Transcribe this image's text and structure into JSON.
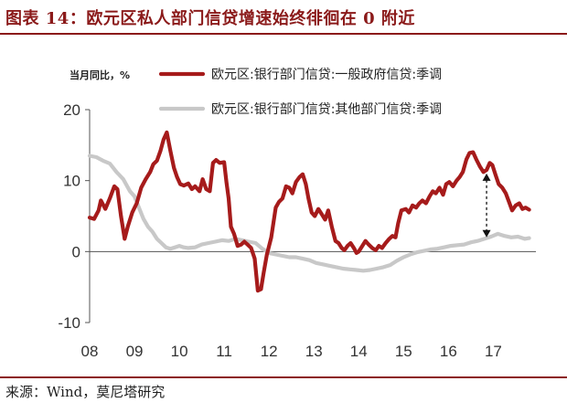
{
  "title": "图表 14：欧元区私人部门信贷增速始终徘徊在 0 附近",
  "source": "来源：Wind，莫尼塔研究",
  "chart_data": {
    "type": "line",
    "unit_label": "当月同比，%",
    "xlabel": "",
    "ylabel": "",
    "xlim": [
      2008,
      2017.95
    ],
    "ylim": [
      -10,
      20
    ],
    "yticks": [
      20,
      10,
      0,
      -10
    ],
    "xticks": [
      {
        "label": "08",
        "value": 2008
      },
      {
        "label": "09",
        "value": 2009
      },
      {
        "label": "10",
        "value": 2010
      },
      {
        "label": "11",
        "value": 2011
      },
      {
        "label": "12",
        "value": 2012
      },
      {
        "label": "13",
        "value": 2013
      },
      {
        "label": "14",
        "value": 2014
      },
      {
        "label": "15",
        "value": 2015
      },
      {
        "label": "16",
        "value": 2016
      },
      {
        "label": "17",
        "value": 2017
      }
    ],
    "legend_position": "top",
    "annotation": {
      "type": "double-arrow",
      "x": 2016.85,
      "y_from": 2,
      "y_to": 11
    },
    "series": [
      {
        "name": "欧元区:银行部门信贷:一般政府信贷:季调",
        "color": "#a61b1b",
        "points": [
          [
            2008.0,
            4.8
          ],
          [
            2008.1,
            4.6
          ],
          [
            2008.2,
            5.8
          ],
          [
            2008.25,
            7.2
          ],
          [
            2008.35,
            6.0
          ],
          [
            2008.45,
            7.5
          ],
          [
            2008.55,
            9.2
          ],
          [
            2008.62,
            8.8
          ],
          [
            2008.7,
            5.0
          ],
          [
            2008.78,
            1.8
          ],
          [
            2008.85,
            3.5
          ],
          [
            2008.95,
            5.5
          ],
          [
            2009.05,
            6.8
          ],
          [
            2009.15,
            9.0
          ],
          [
            2009.25,
            10.2
          ],
          [
            2009.35,
            11.2
          ],
          [
            2009.42,
            12.3
          ],
          [
            2009.5,
            12.8
          ],
          [
            2009.58,
            14.2
          ],
          [
            2009.65,
            15.8
          ],
          [
            2009.72,
            16.8
          ],
          [
            2009.8,
            14.2
          ],
          [
            2009.88,
            11.8
          ],
          [
            2009.95,
            10.5
          ],
          [
            2010.02,
            9.5
          ],
          [
            2010.1,
            9.3
          ],
          [
            2010.2,
            9.6
          ],
          [
            2010.28,
            8.8
          ],
          [
            2010.35,
            9.2
          ],
          [
            2010.45,
            8.5
          ],
          [
            2010.52,
            10.2
          ],
          [
            2010.6,
            8.8
          ],
          [
            2010.68,
            8.5
          ],
          [
            2010.75,
            12.5
          ],
          [
            2010.82,
            12.9
          ],
          [
            2010.9,
            12.5
          ],
          [
            2011.0,
            12.6
          ],
          [
            2011.05,
            9.8
          ],
          [
            2011.1,
            7.5
          ],
          [
            2011.15,
            3.5
          ],
          [
            2011.22,
            2.5
          ],
          [
            2011.3,
            0.8
          ],
          [
            2011.38,
            1.0
          ],
          [
            2011.45,
            1.4
          ],
          [
            2011.52,
            1.0
          ],
          [
            2011.6,
            0.5
          ],
          [
            2011.68,
            -1.0
          ],
          [
            2011.75,
            -5.5
          ],
          [
            2011.82,
            -5.3
          ],
          [
            2011.88,
            -3.0
          ],
          [
            2011.95,
            -0.5
          ],
          [
            2012.05,
            2.0
          ],
          [
            2012.15,
            6.2
          ],
          [
            2012.22,
            7.0
          ],
          [
            2012.3,
            7.5
          ],
          [
            2012.38,
            9.2
          ],
          [
            2012.45,
            9.0
          ],
          [
            2012.52,
            8.2
          ],
          [
            2012.6,
            9.8
          ],
          [
            2012.68,
            10.5
          ],
          [
            2012.75,
            10.9
          ],
          [
            2012.82,
            9.5
          ],
          [
            2012.88,
            7.5
          ],
          [
            2012.95,
            5.5
          ],
          [
            2013.02,
            5.0
          ],
          [
            2013.1,
            6.0
          ],
          [
            2013.18,
            5.2
          ],
          [
            2013.25,
            4.5
          ],
          [
            2013.32,
            5.8
          ],
          [
            2013.4,
            3.5
          ],
          [
            2013.48,
            1.5
          ],
          [
            2013.55,
            1.2
          ],
          [
            2013.62,
            0.5
          ],
          [
            2013.68,
            0.2
          ],
          [
            2013.75,
            0.8
          ],
          [
            2013.82,
            1.2
          ],
          [
            2013.9,
            0.4
          ],
          [
            2013.95,
            -0.2
          ],
          [
            2014.0,
            0.0
          ],
          [
            2014.08,
            0.8
          ],
          [
            2014.15,
            1.5
          ],
          [
            2014.22,
            1.0
          ],
          [
            2014.3,
            0.5
          ],
          [
            2014.38,
            0.2
          ],
          [
            2014.45,
            0.8
          ],
          [
            2014.52,
            0.5
          ],
          [
            2014.6,
            1.2
          ],
          [
            2014.68,
            1.8
          ],
          [
            2014.75,
            2.2
          ],
          [
            2014.82,
            2.0
          ],
          [
            2014.88,
            4.0
          ],
          [
            2014.95,
            5.8
          ],
          [
            2015.05,
            6.0
          ],
          [
            2015.12,
            5.5
          ],
          [
            2015.2,
            6.5
          ],
          [
            2015.28,
            6.2
          ],
          [
            2015.35,
            6.8
          ],
          [
            2015.42,
            7.2
          ],
          [
            2015.5,
            6.8
          ],
          [
            2015.58,
            7.8
          ],
          [
            2015.65,
            8.5
          ],
          [
            2015.72,
            8.2
          ],
          [
            2015.8,
            9.0
          ],
          [
            2015.88,
            8.0
          ],
          [
            2015.95,
            9.5
          ],
          [
            2016.02,
            9.8
          ],
          [
            2016.1,
            9.2
          ],
          [
            2016.18,
            10.0
          ],
          [
            2016.25,
            10.5
          ],
          [
            2016.32,
            11.2
          ],
          [
            2016.4,
            13.0
          ],
          [
            2016.47,
            13.9
          ],
          [
            2016.55,
            14.0
          ],
          [
            2016.62,
            13.0
          ],
          [
            2016.7,
            12.0
          ],
          [
            2016.78,
            11.2
          ],
          [
            2016.85,
            11.5
          ],
          [
            2016.92,
            12.5
          ],
          [
            2016.98,
            12.2
          ],
          [
            2017.05,
            10.8
          ],
          [
            2017.12,
            9.5
          ],
          [
            2017.2,
            9.0
          ],
          [
            2017.28,
            8.2
          ],
          [
            2017.35,
            7.0
          ],
          [
            2017.42,
            5.8
          ],
          [
            2017.5,
            6.5
          ],
          [
            2017.58,
            6.8
          ],
          [
            2017.65,
            6.0
          ],
          [
            2017.72,
            6.2
          ],
          [
            2017.8,
            5.9
          ]
        ]
      },
      {
        "name": "欧元区:银行部门信贷:其他部门信贷:季调",
        "color": "#c8c8c8",
        "points": [
          [
            2008.0,
            13.5
          ],
          [
            2008.15,
            13.3
          ],
          [
            2008.3,
            12.8
          ],
          [
            2008.45,
            12.4
          ],
          [
            2008.6,
            11.2
          ],
          [
            2008.75,
            10.2
          ],
          [
            2008.9,
            8.5
          ],
          [
            2009.0,
            7.8
          ],
          [
            2009.1,
            6.2
          ],
          [
            2009.2,
            4.6
          ],
          [
            2009.3,
            3.5
          ],
          [
            2009.4,
            2.8
          ],
          [
            2009.5,
            1.8
          ],
          [
            2009.6,
            1.2
          ],
          [
            2009.7,
            0.6
          ],
          [
            2009.8,
            0.4
          ],
          [
            2009.9,
            0.6
          ],
          [
            2010.0,
            0.8
          ],
          [
            2010.1,
            0.6
          ],
          [
            2010.2,
            0.5
          ],
          [
            2010.35,
            0.6
          ],
          [
            2010.5,
            1.0
          ],
          [
            2010.65,
            1.2
          ],
          [
            2010.8,
            1.4
          ],
          [
            2010.95,
            1.6
          ],
          [
            2011.1,
            1.5
          ],
          [
            2011.25,
            1.8
          ],
          [
            2011.4,
            1.6
          ],
          [
            2011.55,
            1.4
          ],
          [
            2011.7,
            1.2
          ],
          [
            2011.85,
            0.4
          ],
          [
            2012.0,
            -0.2
          ],
          [
            2012.15,
            -0.4
          ],
          [
            2012.3,
            -0.6
          ],
          [
            2012.45,
            -0.8
          ],
          [
            2012.6,
            -0.8
          ],
          [
            2012.75,
            -1.0
          ],
          [
            2012.9,
            -1.2
          ],
          [
            2013.05,
            -1.6
          ],
          [
            2013.2,
            -1.8
          ],
          [
            2013.35,
            -2.0
          ],
          [
            2013.5,
            -2.2
          ],
          [
            2013.65,
            -2.4
          ],
          [
            2013.8,
            -2.5
          ],
          [
            2013.95,
            -2.6
          ],
          [
            2014.1,
            -2.7
          ],
          [
            2014.25,
            -2.6
          ],
          [
            2014.4,
            -2.4
          ],
          [
            2014.55,
            -2.2
          ],
          [
            2014.7,
            -1.9
          ],
          [
            2014.85,
            -1.3
          ],
          [
            2015.0,
            -0.8
          ],
          [
            2015.15,
            -0.4
          ],
          [
            2015.3,
            -0.1
          ],
          [
            2015.45,
            0.1
          ],
          [
            2015.6,
            0.3
          ],
          [
            2015.75,
            0.4
          ],
          [
            2015.9,
            0.6
          ],
          [
            2016.05,
            0.8
          ],
          [
            2016.2,
            0.9
          ],
          [
            2016.35,
            1.0
          ],
          [
            2016.5,
            1.3
          ],
          [
            2016.65,
            1.5
          ],
          [
            2016.8,
            1.8
          ],
          [
            2016.95,
            2.1
          ],
          [
            2017.1,
            2.5
          ],
          [
            2017.25,
            2.2
          ],
          [
            2017.4,
            2.0
          ],
          [
            2017.55,
            2.1
          ],
          [
            2017.7,
            1.8
          ],
          [
            2017.8,
            1.9
          ]
        ]
      }
    ]
  }
}
